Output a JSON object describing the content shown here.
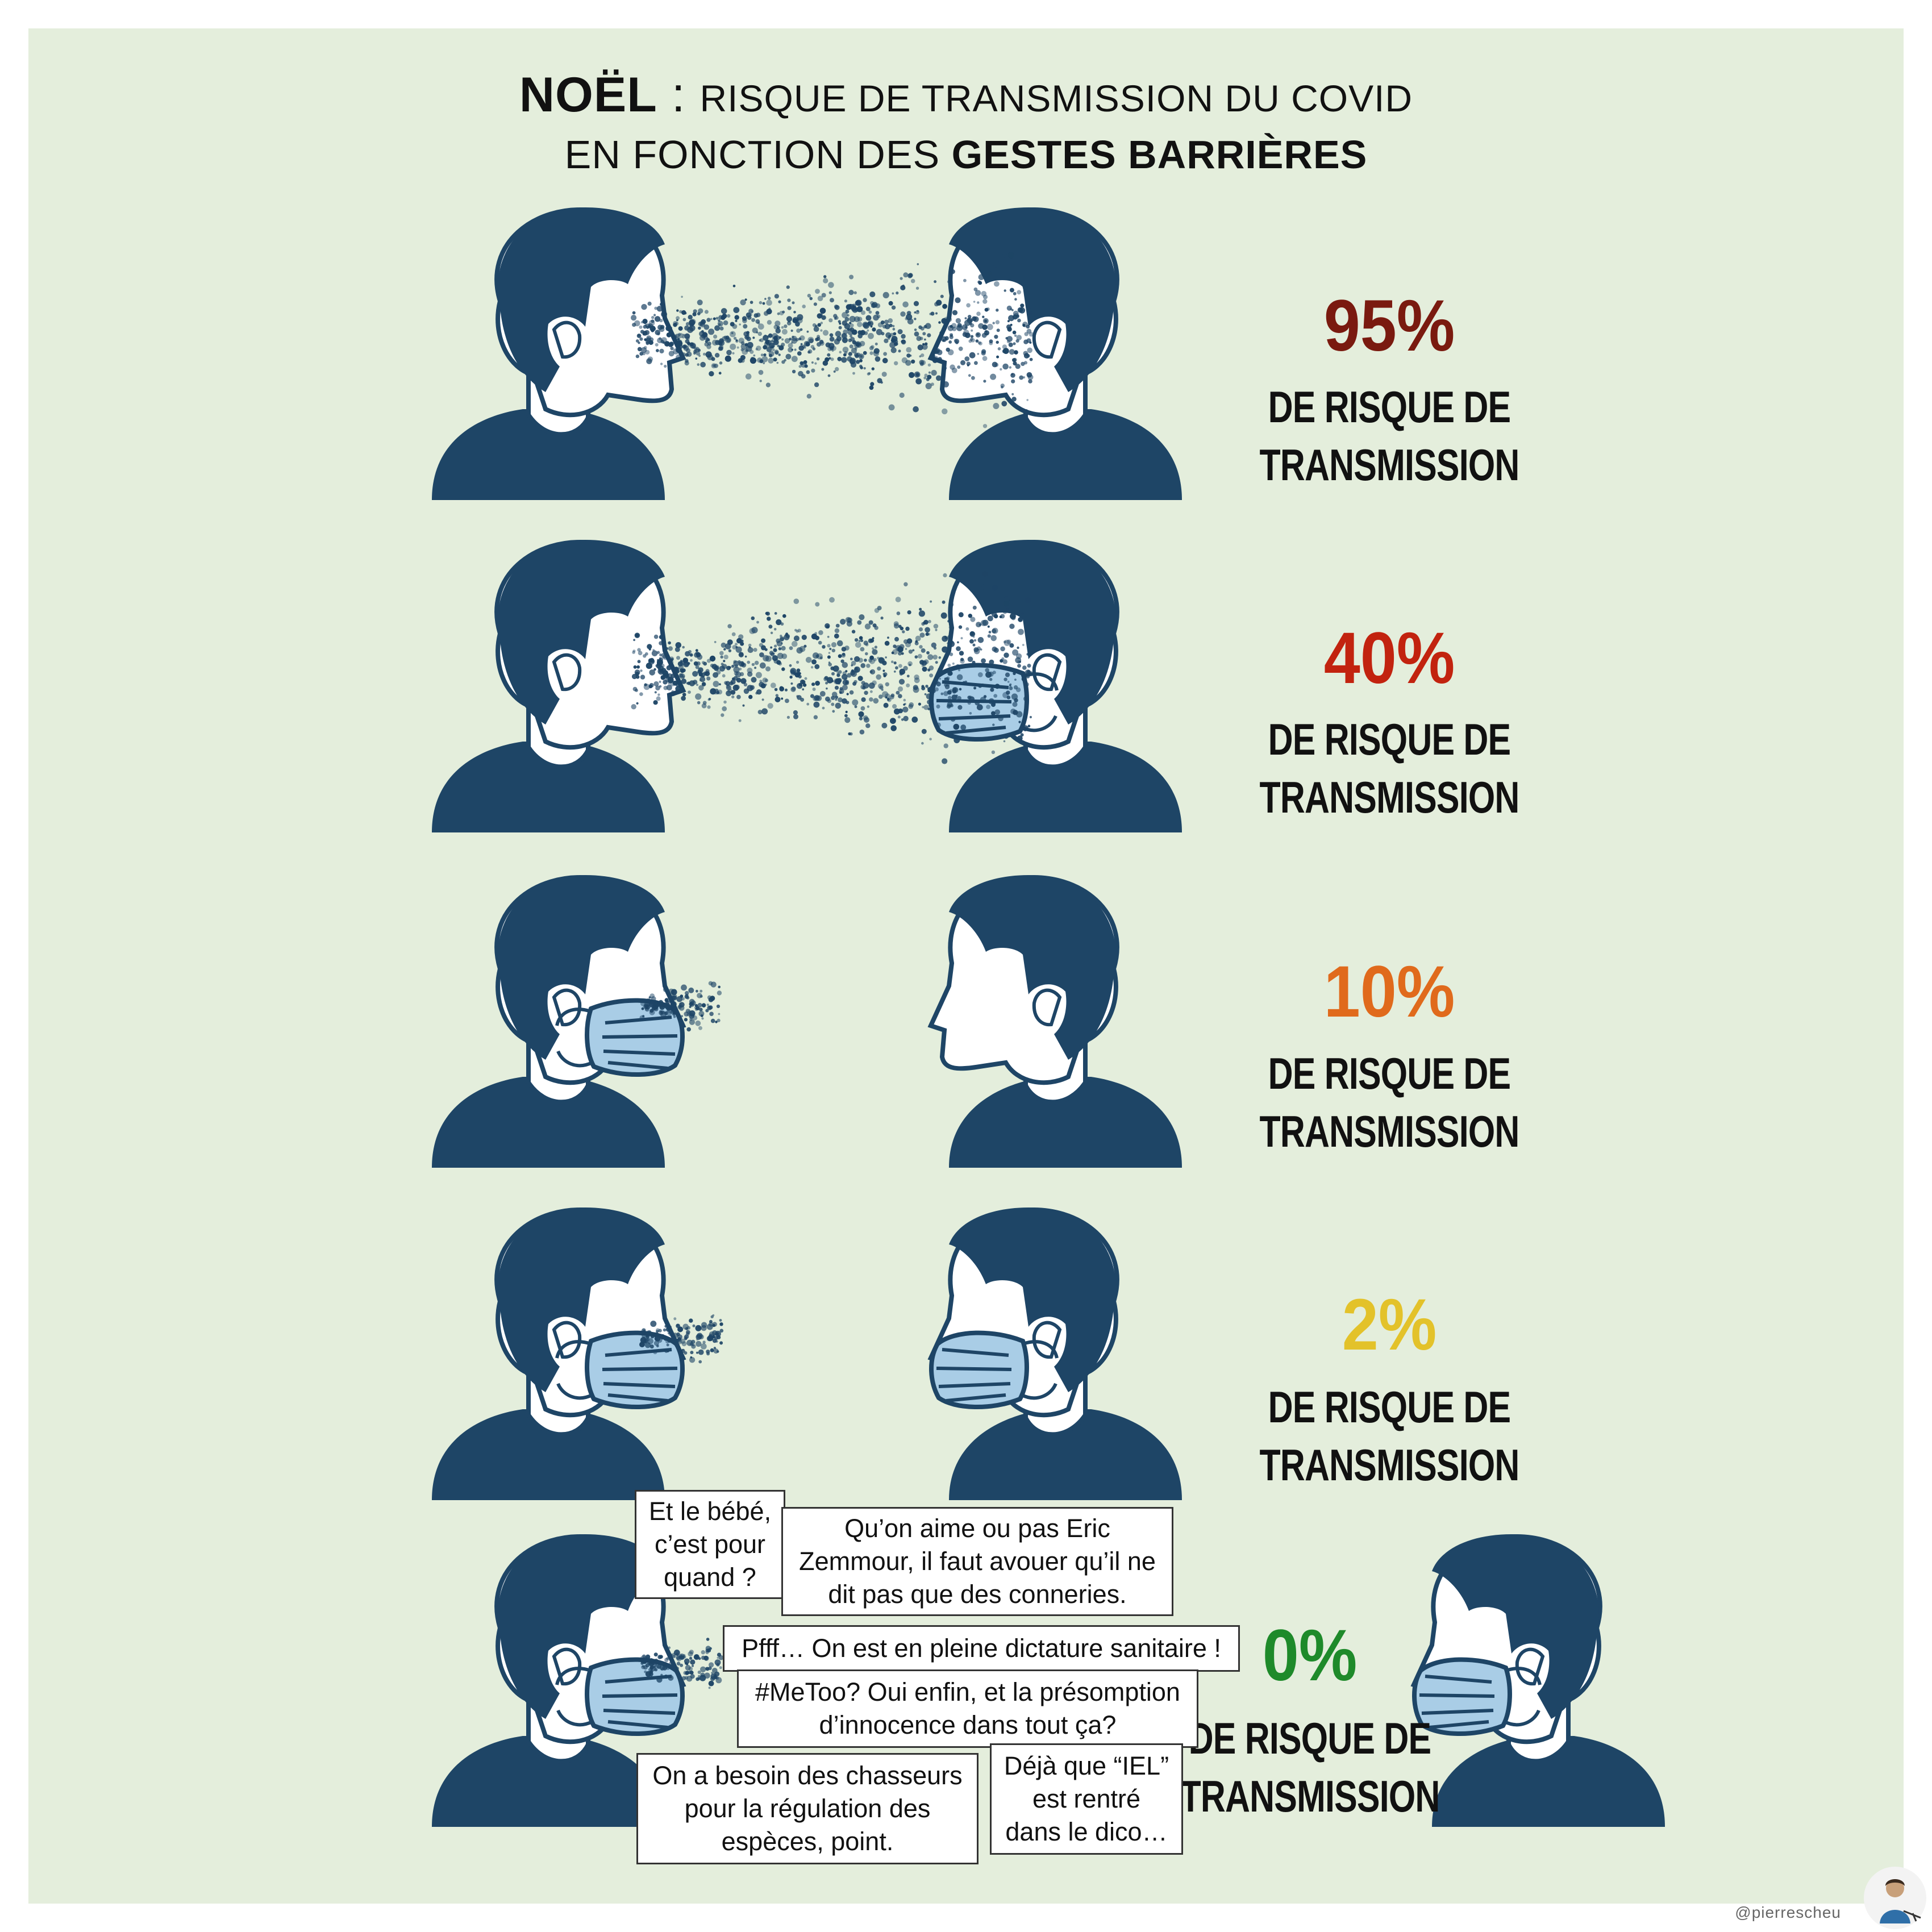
{
  "title": {
    "line1_bold": "NOËL",
    "line1_sep": " : ",
    "line1_rest": "RISQUE DE TRANSMISSION DU COVID",
    "line2_plain": "EN FONCTION DES",
    "line2_bold": "GESTES BARRIÈRES"
  },
  "colors": {
    "background": "#e4eedc",
    "figure": "#1e4566",
    "mask": "#a9cde6"
  },
  "rows": [
    {
      "percent": "95%",
      "color": "#7a1a0f",
      "risk_line1": "DE RISQUE DE",
      "risk_line2": "TRANSMISSION",
      "left_mask": false,
      "right_mask": false,
      "spray": "long"
    },
    {
      "percent": "40%",
      "color": "#c2230f",
      "risk_line1": "DE RISQUE DE",
      "risk_line2": "TRANSMISSION",
      "left_mask": false,
      "right_mask": true,
      "spray": "long"
    },
    {
      "percent": "10%",
      "color": "#e06a1c",
      "risk_line1": "DE RISQUE DE",
      "risk_line2": "TRANSMISSION",
      "left_mask": true,
      "right_mask": false,
      "spray": "short"
    },
    {
      "percent": "2%",
      "color": "#e3c22a",
      "risk_line1": "DE RISQUE DE",
      "risk_line2": "TRANSMISSION",
      "left_mask": true,
      "right_mask": true,
      "spray": "short"
    },
    {
      "percent": "0%",
      "color": "#1e8a2a",
      "risk_line1": "DE RISQUE DE",
      "risk_line2": "TRANSMISSION",
      "left_mask": true,
      "right_mask": true,
      "spray": "short"
    }
  ],
  "bubbles": {
    "baby": [
      "Et le bébé,",
      "c’est pour",
      "quand ?"
    ],
    "zemmour": [
      "Qu’on aime ou pas Eric",
      "Zemmour, il faut avouer qu’il ne",
      "dit pas que des conneries."
    ],
    "dictature": [
      "Pfff… On est en pleine dictature sanitaire !"
    ],
    "metoo": [
      "#MeToo? Oui enfin, et la présomption",
      "d’innocence dans tout ça?"
    ],
    "chasseurs": [
      "On a besoin des chasseurs",
      "pour la régulation des",
      "espèces, point."
    ],
    "iel": [
      "Déjà que “IEL”",
      "est rentré",
      "dans le dico…"
    ]
  },
  "credit": "@pierrescheu"
}
